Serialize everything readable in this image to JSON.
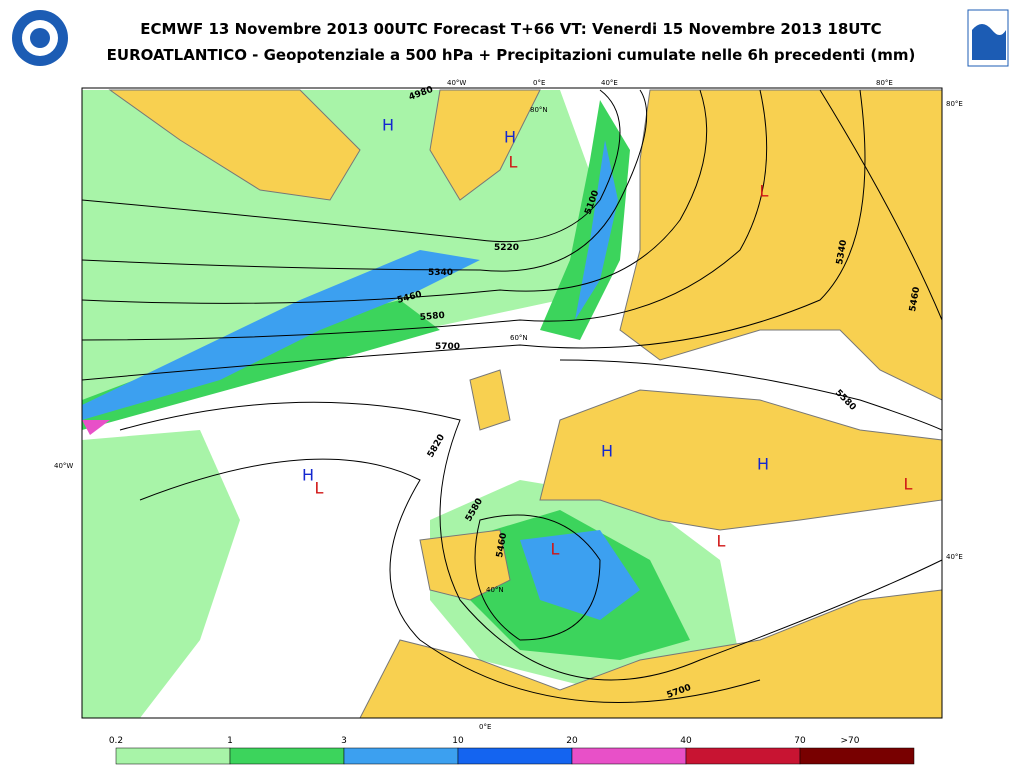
{
  "header": {
    "title": "ECMWF 13 Novembre 2013 00UTC Forecast T+66 VT: Venerdi 15 Novembre 2013 18UTC",
    "subtitle": "EUROATLANTICO - Geopotenziale a 500 hPa + Precipitazioni cumulate nelle 6h precedenti (mm)"
  },
  "map": {
    "pressure_centers": [
      {
        "label": "H",
        "color": "#1428d0"
      },
      {
        "label": "H",
        "color": "#1428d0"
      },
      {
        "label": "L",
        "color": "#d01414"
      },
      {
        "label": "L",
        "color": "#d01414"
      },
      {
        "label": "H",
        "color": "#1428d0"
      },
      {
        "label": "L",
        "color": "#d01414"
      },
      {
        "label": "H",
        "color": "#1428d0"
      },
      {
        "label": "H",
        "color": "#1428d0"
      },
      {
        "label": "L",
        "color": "#d01414"
      },
      {
        "label": "L",
        "color": "#d01414"
      },
      {
        "label": "L",
        "color": "#d01414"
      }
    ],
    "contour_labels": [
      "4980",
      "5100",
      "5220",
      "5340",
      "5460",
      "5580",
      "5700",
      "5820",
      "5580",
      "5460",
      "5340",
      "5460",
      "5580",
      "5700"
    ],
    "graticule_labels": [
      "40°W",
      "0°E",
      "40°E",
      "80°E",
      "80°E",
      "80°N",
      "60°N",
      "40°N",
      "40°W",
      "40°E",
      "0°E"
    ]
  },
  "legend": {
    "labels": [
      "0.2",
      "1",
      "3",
      "10",
      "20",
      "40",
      "70",
      ">70"
    ],
    "colors": [
      "#a8f4a8",
      "#3cd45c",
      "#3ca0f0",
      "#1464f0",
      "#e850c8",
      "#c81432",
      "#780000"
    ]
  }
}
